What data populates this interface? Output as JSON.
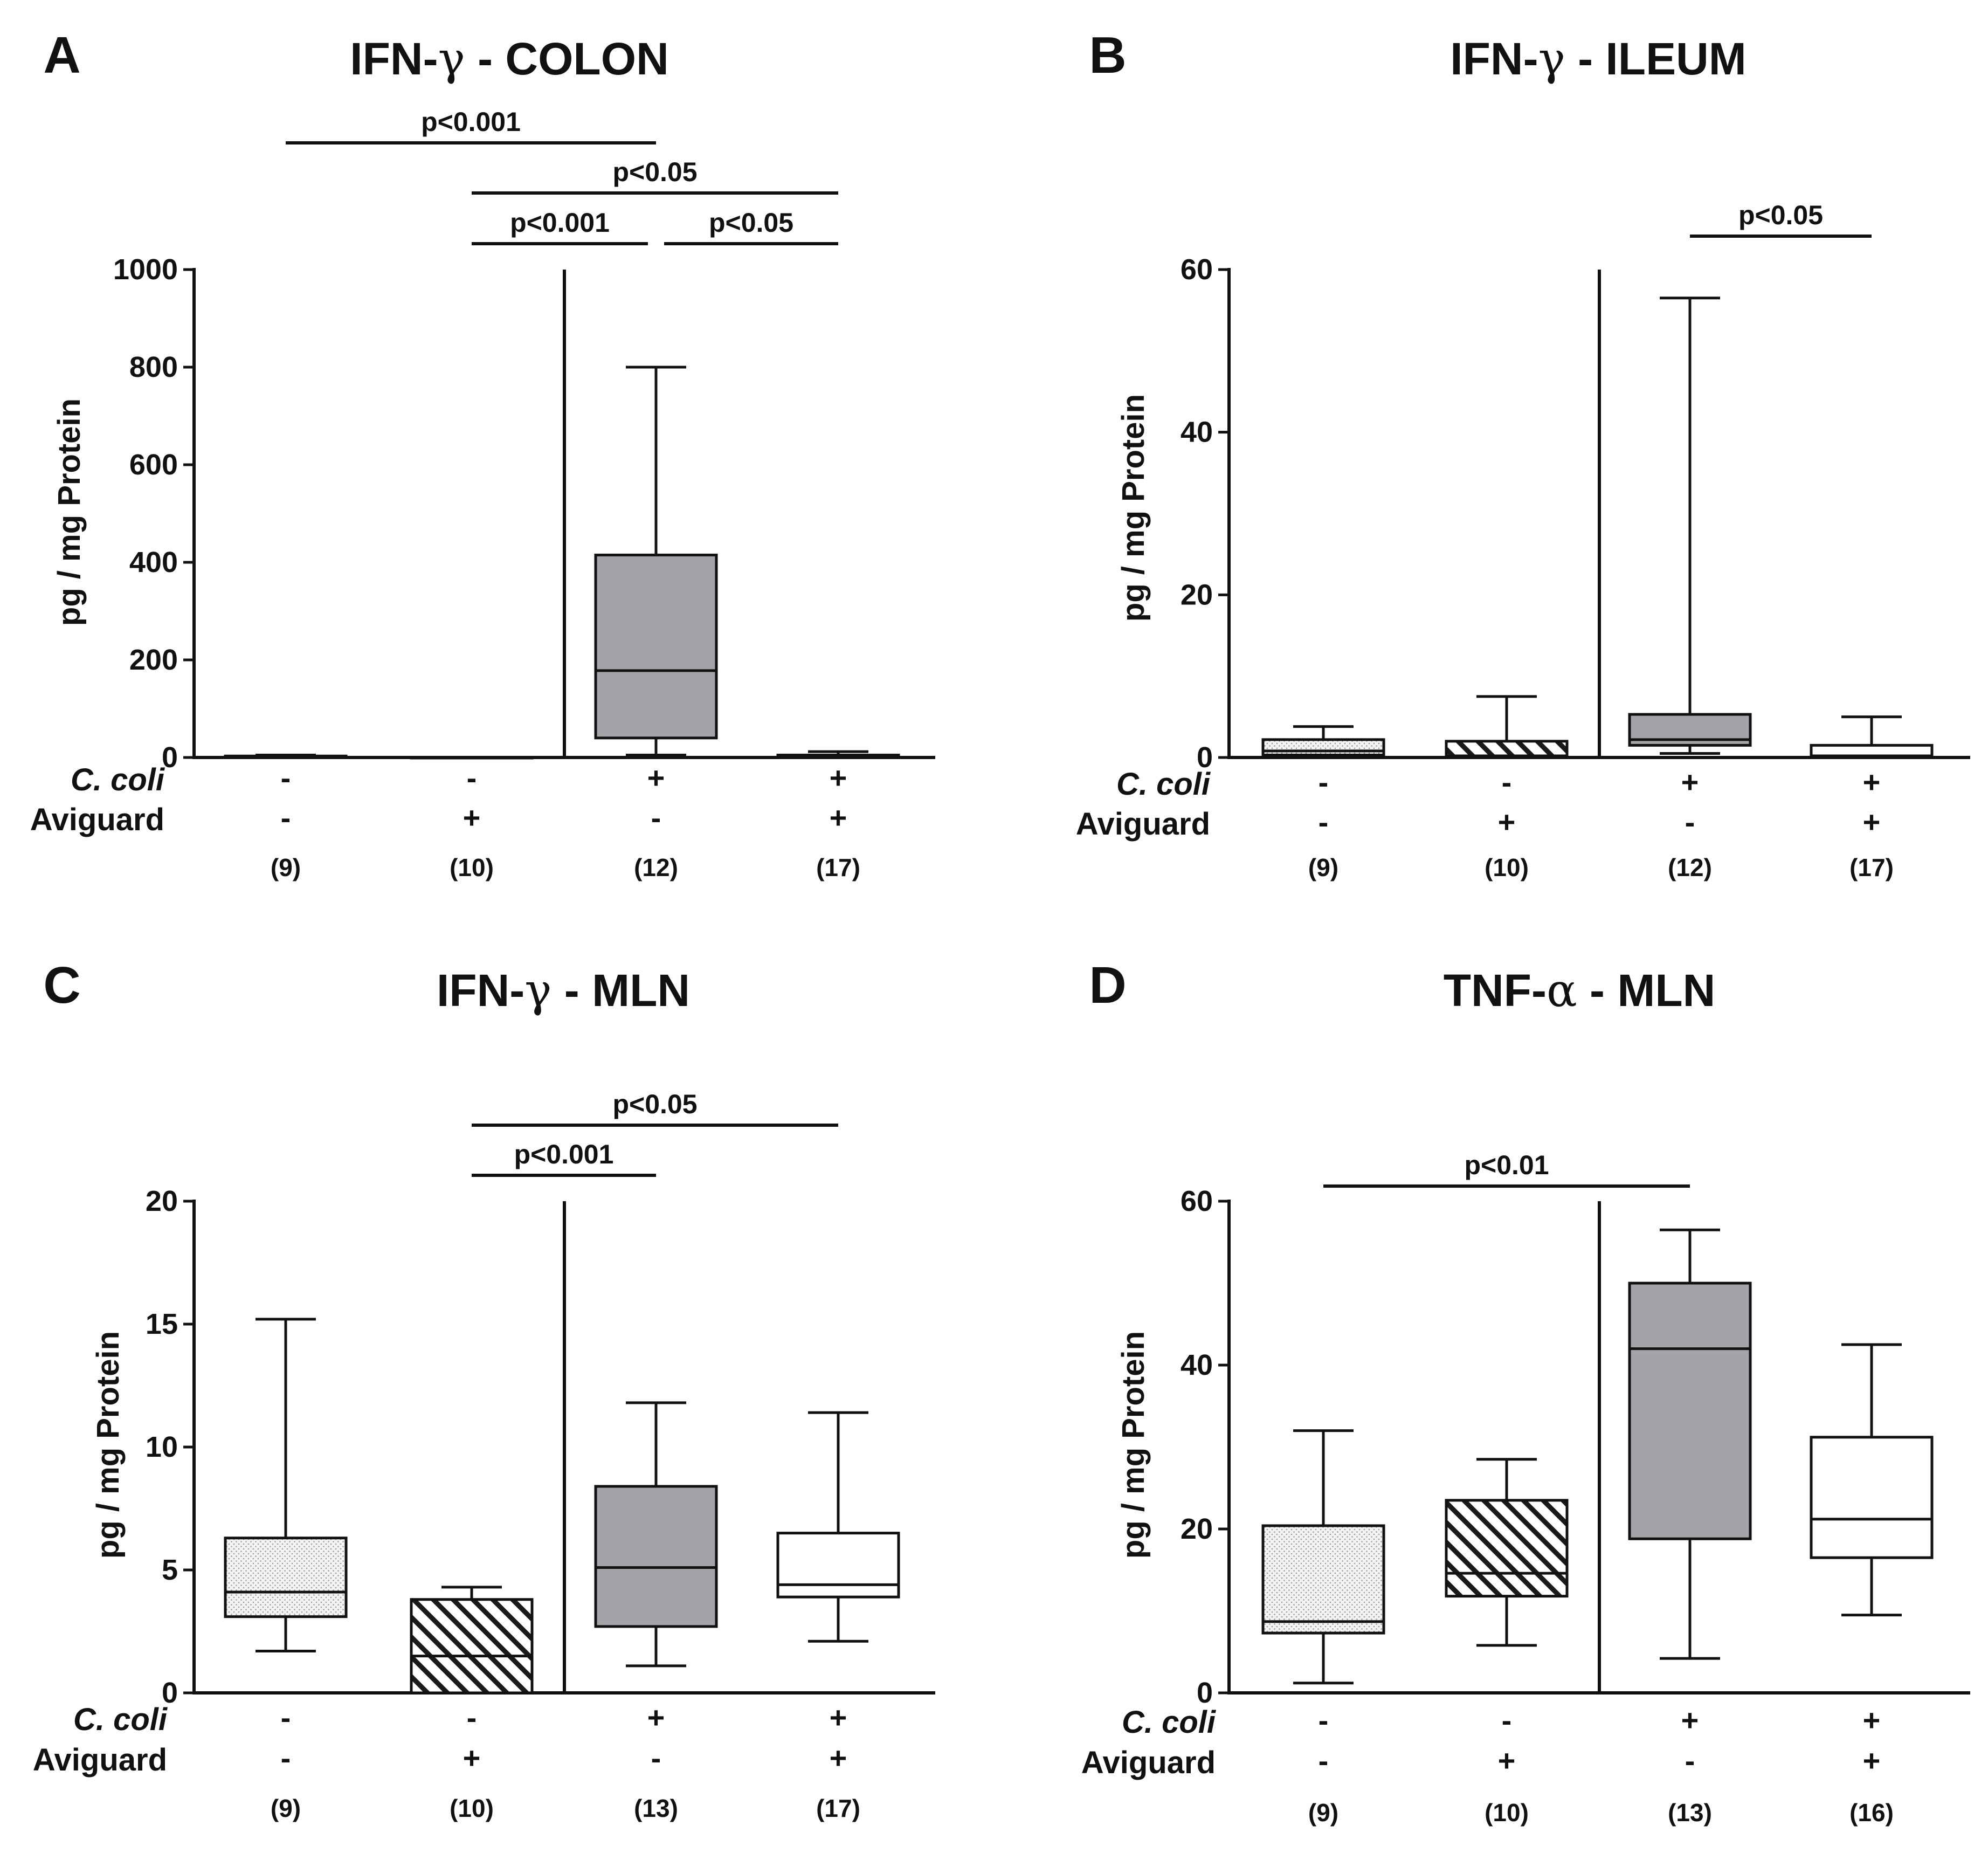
{
  "figure": {
    "row_labels": {
      "cc": "C. coli",
      "av": "Aviguard"
    }
  },
  "chart_data": [
    {
      "type": "box",
      "letter": "A",
      "title": "IFN-γ - COLON",
      "title_parts": [
        "IFN-",
        "γ",
        " - COLON"
      ],
      "ylabel": "pg / mg Protein",
      "ylim": [
        0,
        1000
      ],
      "yticks": [
        "0",
        "200",
        "400",
        "600",
        "800",
        "1000"
      ],
      "row_labels": [
        "C. coli",
        "Aviguard"
      ],
      "groups": [
        {
          "cc": "-",
          "av": "-",
          "n": "(9)",
          "pattern": "dots",
          "box": {
            "min": 0,
            "q1": 0,
            "median": 0,
            "q3": 3,
            "max": 5
          }
        },
        {
          "cc": "-",
          "av": "+",
          "n": "(10)",
          "pattern": "hatch",
          "box": {
            "min": 0,
            "q1": 0,
            "median": 0,
            "q3": 0,
            "max": 0
          }
        },
        {
          "cc": "+",
          "av": "-",
          "n": "(12)",
          "pattern": "grey",
          "box": {
            "min": 5,
            "q1": 40,
            "median": 178,
            "q3": 415,
            "max": 800
          }
        },
        {
          "cc": "+",
          "av": "+",
          "n": "(17)",
          "pattern": "white",
          "box": {
            "min": 0,
            "q1": 0,
            "median": 2,
            "q3": 5,
            "max": 12
          }
        }
      ],
      "brackets": [
        {
          "from": 0,
          "to": 2,
          "label": "p<0.001",
          "level": 3
        },
        {
          "from": 1,
          "to": 3,
          "label": "p<0.05",
          "level": 2
        },
        {
          "from": 1,
          "to": 2,
          "label": "p<0.001",
          "level": 1
        },
        {
          "from": 2,
          "to": 3,
          "label": "p<0.05",
          "level": 1
        }
      ]
    },
    {
      "type": "box",
      "letter": "B",
      "title": "IFN-γ - ILEUM",
      "title_parts": [
        "IFN-",
        "γ",
        " - ILEUM"
      ],
      "ylabel": "pg / mg Protein",
      "ylim": [
        0,
        60
      ],
      "yticks": [
        "0",
        "20",
        "40",
        "60"
      ],
      "row_labels": [
        "C. coli",
        "Aviguard"
      ],
      "groups": [
        {
          "cc": "-",
          "av": "-",
          "n": "(9)",
          "pattern": "dots",
          "box": {
            "min": 0.3,
            "q1": 0.3,
            "median": 0.8,
            "q3": 2.2,
            "max": 3.8
          }
        },
        {
          "cc": "-",
          "av": "+",
          "n": "(10)",
          "pattern": "hatch",
          "box": {
            "min": 0,
            "q1": 0,
            "median": 0.2,
            "q3": 2,
            "max": 7.5
          }
        },
        {
          "cc": "+",
          "av": "-",
          "n": "(12)",
          "pattern": "grey",
          "box": {
            "min": 0.5,
            "q1": 1.5,
            "median": 2.2,
            "q3": 5.3,
            "max": 56.5
          }
        },
        {
          "cc": "+",
          "av": "+",
          "n": "(17)",
          "pattern": "white",
          "box": {
            "min": 0,
            "q1": 0,
            "median": 0.2,
            "q3": 1.5,
            "max": 5
          }
        }
      ],
      "brackets": [
        {
          "from": 2,
          "to": 3,
          "label": "p<0.05",
          "level": 1
        }
      ]
    },
    {
      "type": "box",
      "letter": "C",
      "title": "IFN-γ - MLN",
      "title_parts": [
        "IFN-",
        "γ",
        " - MLN"
      ],
      "ylabel": "pg / mg Protein",
      "ylim": [
        0,
        20
      ],
      "yticks": [
        "0",
        "5",
        "10",
        "15",
        "20"
      ],
      "row_labels": [
        "C. coli",
        "Aviguard"
      ],
      "groups": [
        {
          "cc": "-",
          "av": "-",
          "n": "(9)",
          "pattern": "dots",
          "box": {
            "min": 1.7,
            "q1": 3.1,
            "median": 4.1,
            "q3": 6.3,
            "max": 15.2
          }
        },
        {
          "cc": "-",
          "av": "+",
          "n": "(10)",
          "pattern": "hatch",
          "box": {
            "min": 0,
            "q1": 0,
            "median": 1.5,
            "q3": 3.8,
            "max": 4.3
          }
        },
        {
          "cc": "+",
          "av": "-",
          "n": "(13)",
          "pattern": "grey",
          "box": {
            "min": 1.1,
            "q1": 2.7,
            "median": 5.1,
            "q3": 8.4,
            "max": 11.8
          }
        },
        {
          "cc": "+",
          "av": "+",
          "n": "(17)",
          "pattern": "white",
          "box": {
            "min": 2.1,
            "q1": 3.9,
            "median": 4.4,
            "q3": 6.5,
            "max": 11.4
          }
        }
      ],
      "brackets": [
        {
          "from": 1,
          "to": 3,
          "label": "p<0.05",
          "level": 2
        },
        {
          "from": 1,
          "to": 2,
          "label": "p<0.001",
          "level": 1
        }
      ]
    },
    {
      "type": "box",
      "letter": "D",
      "title": "TNF-α - MLN",
      "title_parts": [
        "TNF-",
        "α",
        " - MLN"
      ],
      "ylabel": "pg / mg Protein",
      "ylim": [
        0,
        60
      ],
      "yticks": [
        "0",
        "20",
        "40",
        "60"
      ],
      "row_labels": [
        "C. coli",
        "Aviguard"
      ],
      "groups": [
        {
          "cc": "-",
          "av": "-",
          "n": "(9)",
          "pattern": "dots",
          "box": {
            "min": 1.2,
            "q1": 7.3,
            "median": 8.7,
            "q3": 20.4,
            "max": 32
          }
        },
        {
          "cc": "-",
          "av": "+",
          "n": "(10)",
          "pattern": "hatch",
          "box": {
            "min": 5.8,
            "q1": 11.8,
            "median": 14.6,
            "q3": 23.5,
            "max": 28.5
          }
        },
        {
          "cc": "+",
          "av": "-",
          "n": "(13)",
          "pattern": "grey",
          "box": {
            "min": 4.2,
            "q1": 18.8,
            "median": 42,
            "q3": 50,
            "max": 56.5
          }
        },
        {
          "cc": "+",
          "av": "+",
          "n": "(16)",
          "pattern": "white",
          "box": {
            "min": 9.5,
            "q1": 16.5,
            "median": 21.2,
            "q3": 31.2,
            "max": 42.5
          }
        }
      ],
      "brackets": [
        {
          "from": 0,
          "to": 2,
          "label": "p<0.01",
          "level": 1
        }
      ]
    }
  ]
}
